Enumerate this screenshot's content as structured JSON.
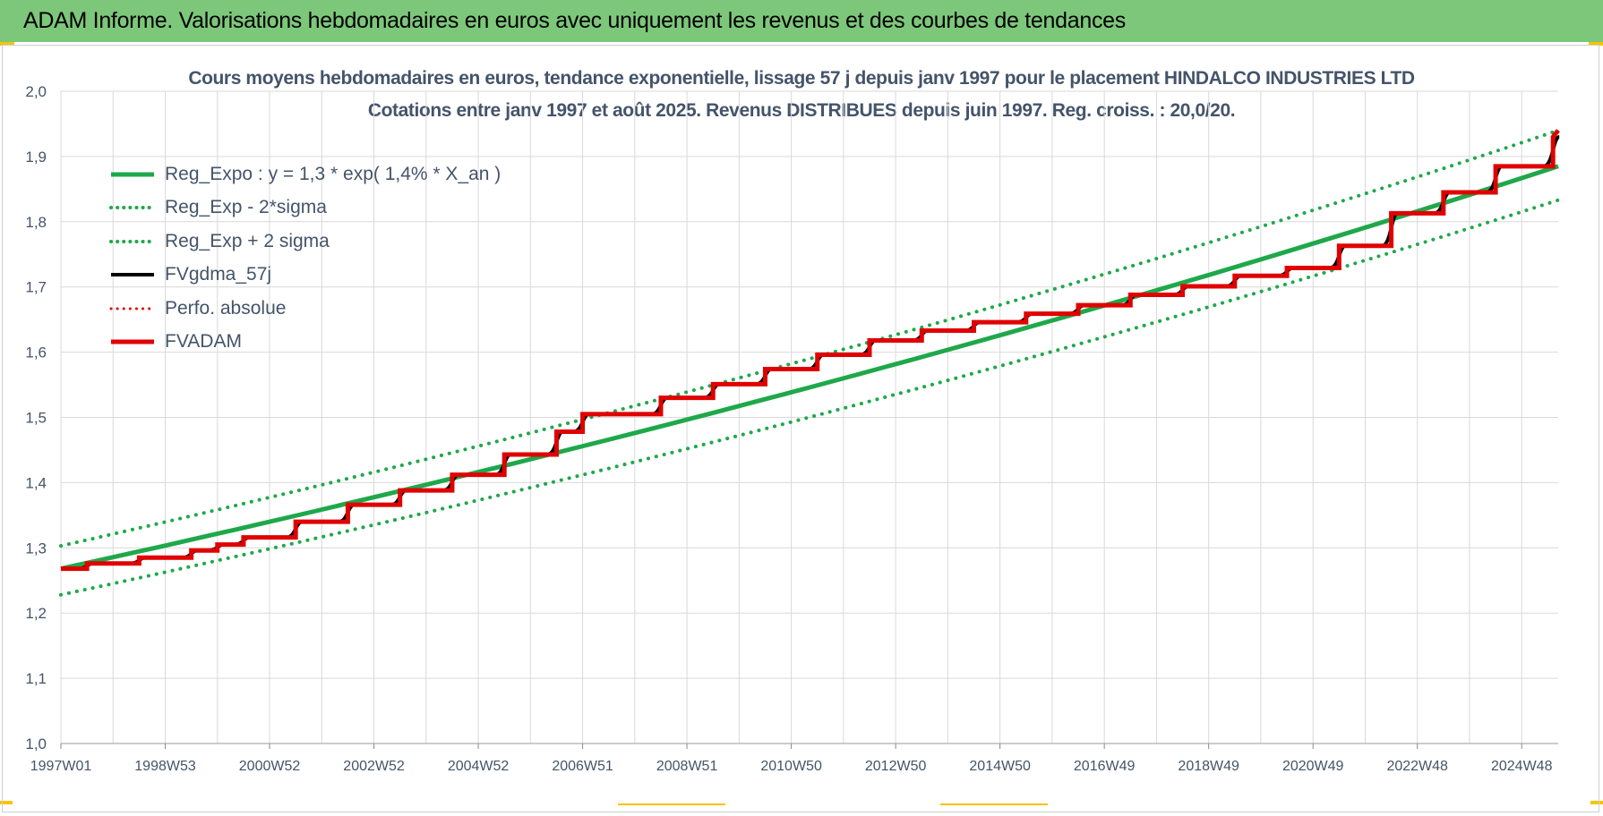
{
  "banner": {
    "title": "ADAM Informe. Valorisations hebdomadaires en euros avec uniquement les revenus et des courbes de tendances"
  },
  "colors": {
    "banner_bg": "#7dc77a",
    "reg_green": "#1fa84a",
    "band_green": "#1fa84a",
    "fv_black": "#000000",
    "adam_red": "#e00000",
    "perf_red": "#e00000",
    "grid": "#d9d9d9",
    "text": "#44546a"
  },
  "chart_data": {
    "type": "line",
    "title_line1": "Cours moyens hebdomadaires en euros, tendance exponentielle, lissage 57 j depuis janv 1997 pour le placement HINDALCO INDUSTRIES LTD",
    "title_line2": "Cotations entre janv 1997 et août 2025. Revenus DISTRIBUES depuis juin 1997. Reg. croiss. : 20,0/20.",
    "ylim": [
      1.0,
      2.0
    ],
    "yticks": [
      "1,0",
      "1,1",
      "1,2",
      "1,3",
      "1,4",
      "1,5",
      "1,6",
      "1,7",
      "1,8",
      "1,9",
      "2,0"
    ],
    "xlim": [
      1997.0,
      2025.7
    ],
    "xticks": [
      {
        "label": "1997W01",
        "x": 1997.0
      },
      {
        "label": "1998W53",
        "x": 1999.0
      },
      {
        "label": "2000W52",
        "x": 2001.0
      },
      {
        "label": "2002W52",
        "x": 2003.0
      },
      {
        "label": "2004W52",
        "x": 2005.0
      },
      {
        "label": "2006W51",
        "x": 2007.0
      },
      {
        "label": "2008W51",
        "x": 2009.0
      },
      {
        "label": "2010W50",
        "x": 2011.0
      },
      {
        "label": "2012W50",
        "x": 2013.0
      },
      {
        "label": "2014W50",
        "x": 2015.0
      },
      {
        "label": "2016W49",
        "x": 2017.0
      },
      {
        "label": "2018W49",
        "x": 2019.0
      },
      {
        "label": "2020W49",
        "x": 2021.0
      },
      {
        "label": "2022W48",
        "x": 2023.0
      },
      {
        "label": "2024W48",
        "x": 2025.0
      }
    ],
    "legend": [
      {
        "name": "Reg_Expo : y = 1,3 * exp( 1,4% *  X_an )",
        "style": "solid",
        "color": "#1fa84a",
        "width": 5
      },
      {
        "name": "Reg_Exp - 2*sigma",
        "style": "dotted",
        "color": "#1fa84a",
        "width": 4
      },
      {
        "name": "Reg_Exp + 2 sigma",
        "style": "dotted",
        "color": "#1fa84a",
        "width": 4
      },
      {
        "name": "FVgdma_57j",
        "style": "solid",
        "color": "#000000",
        "width": 4
      },
      {
        "name": "Perfo. absolue",
        "style": "dotted",
        "color": "#e00000",
        "width": 3
      },
      {
        "name": "FVADAM",
        "style": "solid",
        "color": "#e00000",
        "width": 5
      }
    ],
    "series": [
      {
        "name": "Reg_Expo : y = 1,3 * exp( 1,4% *  X_an )",
        "x": [
          1997.0,
          2025.7
        ],
        "y": [
          1.268,
          1.885
        ]
      },
      {
        "name": "Reg_Exp - 2*sigma",
        "x": [
          1997.0,
          2025.7
        ],
        "y": [
          1.228,
          1.833
        ]
      },
      {
        "name": "Reg_Exp + 2 sigma",
        "x": [
          1997.0,
          2025.7
        ],
        "y": [
          1.303,
          1.94
        ]
      },
      {
        "name": "FVADAM",
        "steps": [
          [
            1997.0,
            1.268
          ],
          [
            1997.5,
            1.276
          ],
          [
            1998.5,
            1.285
          ],
          [
            1999.5,
            1.296
          ],
          [
            2000.0,
            1.305
          ],
          [
            2000.5,
            1.316
          ],
          [
            2001.5,
            1.34
          ],
          [
            2002.5,
            1.366
          ],
          [
            2003.5,
            1.388
          ],
          [
            2004.5,
            1.412
          ],
          [
            2005.5,
            1.443
          ],
          [
            2006.5,
            1.478
          ],
          [
            2007.0,
            1.505
          ],
          [
            2008.5,
            1.53
          ],
          [
            2009.5,
            1.551
          ],
          [
            2010.5,
            1.574
          ],
          [
            2011.5,
            1.596
          ],
          [
            2012.5,
            1.618
          ],
          [
            2013.5,
            1.633
          ],
          [
            2014.5,
            1.646
          ],
          [
            2015.5,
            1.659
          ],
          [
            2016.5,
            1.672
          ],
          [
            2017.5,
            1.688
          ],
          [
            2018.5,
            1.701
          ],
          [
            2019.5,
            1.717
          ],
          [
            2020.5,
            1.729
          ],
          [
            2021.5,
            1.763
          ],
          [
            2022.5,
            1.813
          ],
          [
            2023.5,
            1.845
          ],
          [
            2024.5,
            1.885
          ],
          [
            2025.6,
            1.93
          ]
        ]
      }
    ]
  }
}
